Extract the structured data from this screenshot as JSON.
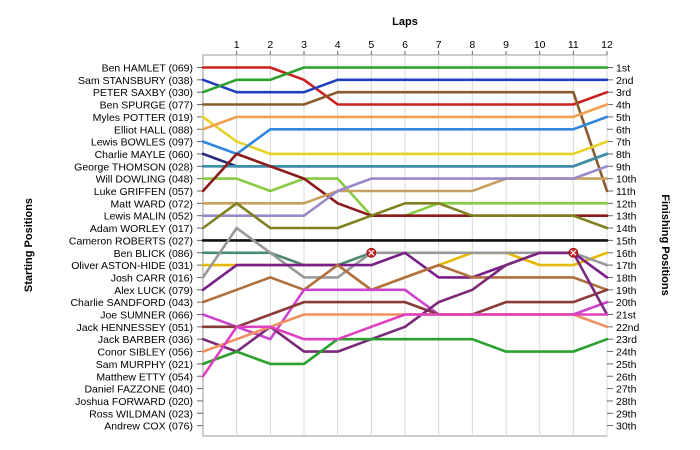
{
  "chart_data": {
    "type": "line",
    "title": "",
    "xlabel": "Laps",
    "ylabel_left": "Starting Positions",
    "ylabel_right": "Finishing Positions",
    "laps": [
      "1",
      "2",
      "3",
      "4",
      "5",
      "6",
      "7",
      "8",
      "9",
      "10",
      "11",
      "12"
    ],
    "finish_labels": [
      "1st",
      "2nd",
      "3rd",
      "4th",
      "5th",
      "6th",
      "7th",
      "8th",
      "9th",
      "10th",
      "11th",
      "12th",
      "13th",
      "14th",
      "15th",
      "16th",
      "17th",
      "18th",
      "19th",
      "20th",
      "21st",
      "22nd",
      "23rd",
      "24th",
      "25th",
      "26th",
      "27th",
      "28th",
      "29th",
      "30th"
    ],
    "grid": true,
    "series": [
      {
        "name": "Ben HAMLET (069)",
        "color": "#cc1f1f",
        "positions": [
          1,
          1,
          1,
          2,
          4,
          4,
          4,
          4,
          4,
          4,
          4,
          4,
          3
        ]
      },
      {
        "name": "Sam STANSBURY (038)",
        "color": "#1f3fbf",
        "positions": [
          2,
          3,
          3,
          3,
          2,
          2,
          2,
          2,
          2,
          2,
          2,
          2,
          2
        ]
      },
      {
        "name": "PETER SAXBY (030)",
        "color": "#2ca02c",
        "positions": [
          3,
          2,
          2,
          1,
          1,
          1,
          1,
          1,
          1,
          1,
          1,
          1,
          1
        ]
      },
      {
        "name": "Ben SPURGE (077)",
        "color": "#8b5a2b",
        "positions": [
          4,
          4,
          4,
          4,
          3,
          3,
          3,
          3,
          3,
          3,
          3,
          3,
          11
        ]
      },
      {
        "name": "Myles POTTER (019)",
        "color": "#e8d22a",
        "positions": [
          5,
          7,
          8,
          8,
          8,
          8,
          8,
          8,
          8,
          8,
          8,
          8,
          7
        ]
      },
      {
        "name": "Elliot HALL (088)",
        "color": "#f0a050",
        "positions": [
          6,
          5,
          5,
          5,
          5,
          5,
          5,
          5,
          5,
          5,
          5,
          5,
          4
        ]
      },
      {
        "name": "Lewis BOWLES (097)",
        "color": "#3388dd",
        "positions": [
          7,
          8,
          6,
          6,
          6,
          6,
          6,
          6,
          6,
          6,
          6,
          6,
          5
        ]
      },
      {
        "name": "Charlie MAYLE (060)",
        "color": "#2a2a7a",
        "positions": [
          8,
          9,
          9,
          9,
          9,
          9,
          9,
          9,
          9,
          9,
          9,
          9,
          8
        ]
      },
      {
        "name": "George THOMSON (028)",
        "color": "#3d8fa8",
        "positions": [
          9,
          9,
          9,
          9,
          9,
          9,
          9,
          9,
          9,
          9,
          9,
          9,
          8
        ]
      },
      {
        "name": "Will DOWLING (048)",
        "color": "#88cc44",
        "positions": [
          10,
          10,
          11,
          10,
          10,
          13,
          13,
          12,
          12,
          12,
          12,
          12,
          12
        ]
      },
      {
        "name": "Luke GRIFFEN (057)",
        "color": "#8b1a1a",
        "positions": [
          11,
          8,
          9,
          10,
          12,
          13,
          13,
          13,
          13,
          13,
          13,
          13,
          13
        ]
      },
      {
        "name": "Matt WARD (072)",
        "color": "#c8a060",
        "positions": [
          12,
          12,
          12,
          12,
          11,
          11,
          11,
          11,
          11,
          10,
          10,
          10,
          10
        ]
      },
      {
        "name": "Lewis MALIN (052)",
        "color": "#9b88c8",
        "positions": [
          13,
          13,
          13,
          13,
          11,
          10,
          10,
          10,
          10,
          10,
          10,
          10,
          9
        ]
      },
      {
        "name": "Adam WORLEY (017)",
        "color": "#808020",
        "positions": [
          14,
          12,
          14,
          14,
          14,
          13,
          12,
          12,
          13,
          13,
          13,
          13,
          14
        ]
      },
      {
        "name": "Cameron ROBERTS (027)",
        "color": "#111111",
        "positions": [
          15,
          15,
          15,
          15,
          15,
          15,
          15,
          15,
          15,
          15,
          15,
          15,
          15
        ]
      },
      {
        "name": "Ben BLICK (086)",
        "color": "#4a8a70",
        "positions": [
          16,
          16,
          16,
          17,
          17,
          16,
          null,
          null,
          null,
          null,
          null,
          null,
          null
        ]
      },
      {
        "name": "Oliver ASTON-HIDE (031)",
        "color": "#e6b800",
        "positions": [
          17,
          17,
          17,
          17,
          17,
          19,
          18,
          17,
          16,
          16,
          17,
          17,
          16
        ]
      },
      {
        "name": "Josh CARR (016)",
        "color": "#999999",
        "positions": [
          18,
          14,
          16,
          18,
          18,
          16,
          16,
          16,
          16,
          16,
          16,
          16,
          17
        ]
      },
      {
        "name": "Alex LUCK (079)",
        "color": "#7a1f8a",
        "positions": [
          19,
          17,
          17,
          17,
          17,
          17,
          16,
          18,
          18,
          17,
          16,
          16,
          18
        ]
      },
      {
        "name": "Charlie SANDFORD (043)",
        "color": "#b07040",
        "positions": [
          20,
          19,
          18,
          19,
          17,
          19,
          18,
          17,
          18,
          18,
          18,
          18,
          19
        ]
      },
      {
        "name": "Joe SUMNER (066)",
        "color": "#cc44cc",
        "positions": [
          21,
          22,
          23,
          19,
          19,
          19,
          19,
          21,
          21,
          21,
          21,
          21,
          20
        ]
      },
      {
        "name": "Jack HENNESSEY (051)",
        "color": "#8b3a3a",
        "positions": [
          22,
          22,
          21,
          20,
          20,
          20,
          20,
          21,
          21,
          20,
          20,
          20,
          19
        ]
      },
      {
        "name": "Jack BARBER (036)",
        "color": "#7a2a7a",
        "positions": [
          23,
          24,
          22,
          24,
          24,
          23,
          22,
          20,
          19,
          17,
          16,
          16,
          21
        ]
      },
      {
        "name": "Conor SIBLEY (056)",
        "color": "#f09060",
        "positions": [
          24,
          23,
          22,
          21,
          21,
          21,
          21,
          21,
          21,
          21,
          21,
          21,
          22
        ]
      },
      {
        "name": "Sam MURPHY (021)",
        "color": "#2ca02c",
        "positions": [
          25,
          24,
          25,
          25,
          23,
          23,
          23,
          23,
          23,
          24,
          24,
          24,
          23
        ]
      },
      {
        "name": "Matthew ETTY (054)",
        "color": "#e040c0",
        "positions": [
          26,
          22,
          22,
          23,
          23,
          22,
          21,
          21,
          21,
          21,
          21,
          21,
          21
        ]
      },
      {
        "name": "Daniel FAZZONE (040)",
        "color": "#000000",
        "positions": [
          27,
          null,
          null,
          null,
          null,
          null,
          null,
          null,
          null,
          null,
          null,
          null,
          null
        ]
      },
      {
        "name": "Joshua FORWARD (020)",
        "color": "#000000",
        "positions": [
          28,
          null,
          null,
          null,
          null,
          null,
          null,
          null,
          null,
          null,
          null,
          null,
          null
        ]
      },
      {
        "name": "Ross WILDMAN (023)",
        "color": "#000000",
        "positions": [
          29,
          null,
          null,
          null,
          null,
          null,
          null,
          null,
          null,
          null,
          null,
          null,
          null
        ]
      },
      {
        "name": "Andrew COX (076)",
        "color": "#000000",
        "positions": [
          30,
          null,
          null,
          null,
          null,
          null,
          null,
          null,
          null,
          null,
          null,
          null,
          null
        ]
      }
    ],
    "retirements": [
      {
        "lap": 5,
        "position": 16
      },
      {
        "lap": 11,
        "position": 16
      }
    ]
  }
}
